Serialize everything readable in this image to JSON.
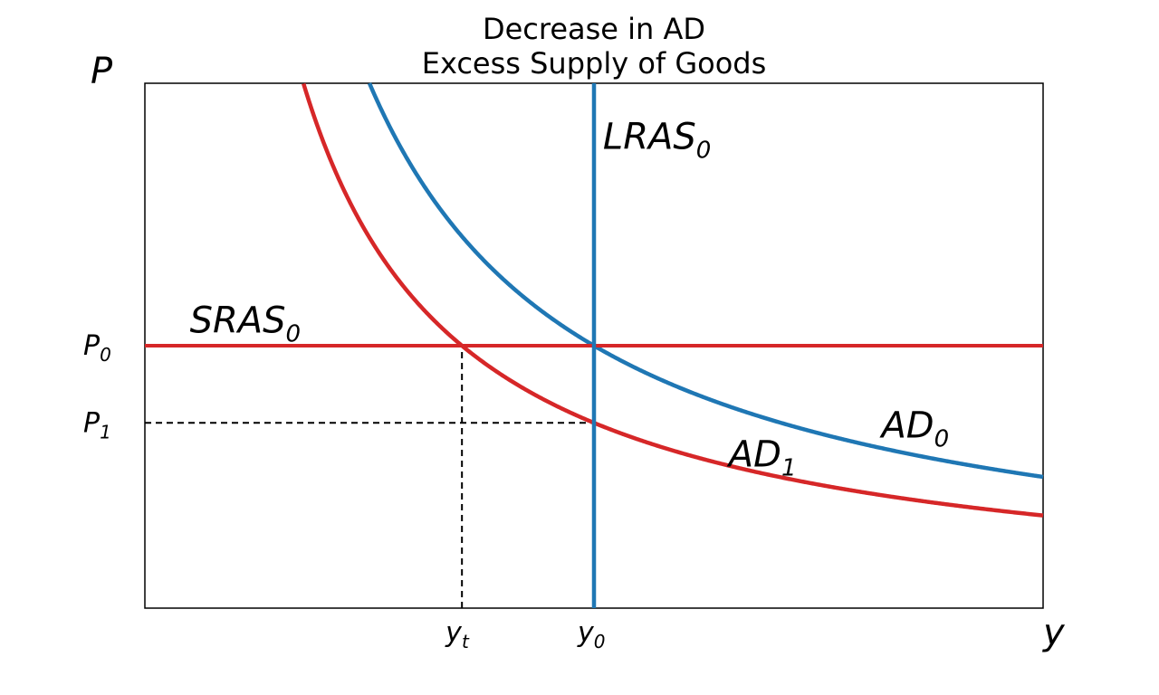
{
  "chart_data": {
    "type": "line",
    "title": [
      "Decrease in AD",
      "Excess Supply of Goods"
    ],
    "xlabel": "y",
    "ylabel": "P",
    "xlim": [
      0,
      10
    ],
    "ylim": [
      0,
      10
    ],
    "grid": false,
    "colors": {
      "red": "#d62728",
      "blue": "#1f77b4",
      "black": "#000000"
    },
    "x_ticks": [
      {
        "base": "y",
        "sub": "t",
        "value": 3.53
      },
      {
        "base": "y",
        "sub": "0",
        "value": 5.0
      }
    ],
    "y_ticks": [
      {
        "base": "P",
        "sub": "0",
        "value": 5.0
      },
      {
        "base": "P",
        "sub": "1",
        "value": 3.53
      }
    ],
    "series": [
      {
        "name": "AD",
        "sub": "0",
        "color": "#1f77b4",
        "kind": "hyperbola",
        "k": 25.0,
        "label_at": [
          8.2,
          3.25
        ]
      },
      {
        "name": "AD",
        "sub": "1",
        "color": "#d62728",
        "kind": "hyperbola",
        "k": 17.65,
        "label_at": [
          6.5,
          2.7
        ]
      },
      {
        "name": "SRAS",
        "sub": "0",
        "color": "#d62728",
        "kind": "horizontal",
        "value": 5.0,
        "label_at": [
          0.5,
          5.25
        ]
      },
      {
        "name": "LRAS",
        "sub": "0",
        "color": "#1f77b4",
        "kind": "vertical",
        "value": 5.0,
        "label_at": [
          5.1,
          8.75
        ]
      }
    ],
    "guides": [
      {
        "kind": "vline",
        "x": 3.53,
        "from": 0,
        "to": 5.0
      },
      {
        "kind": "hline",
        "y": 3.53,
        "from": 0,
        "to": 5.0
      }
    ]
  }
}
